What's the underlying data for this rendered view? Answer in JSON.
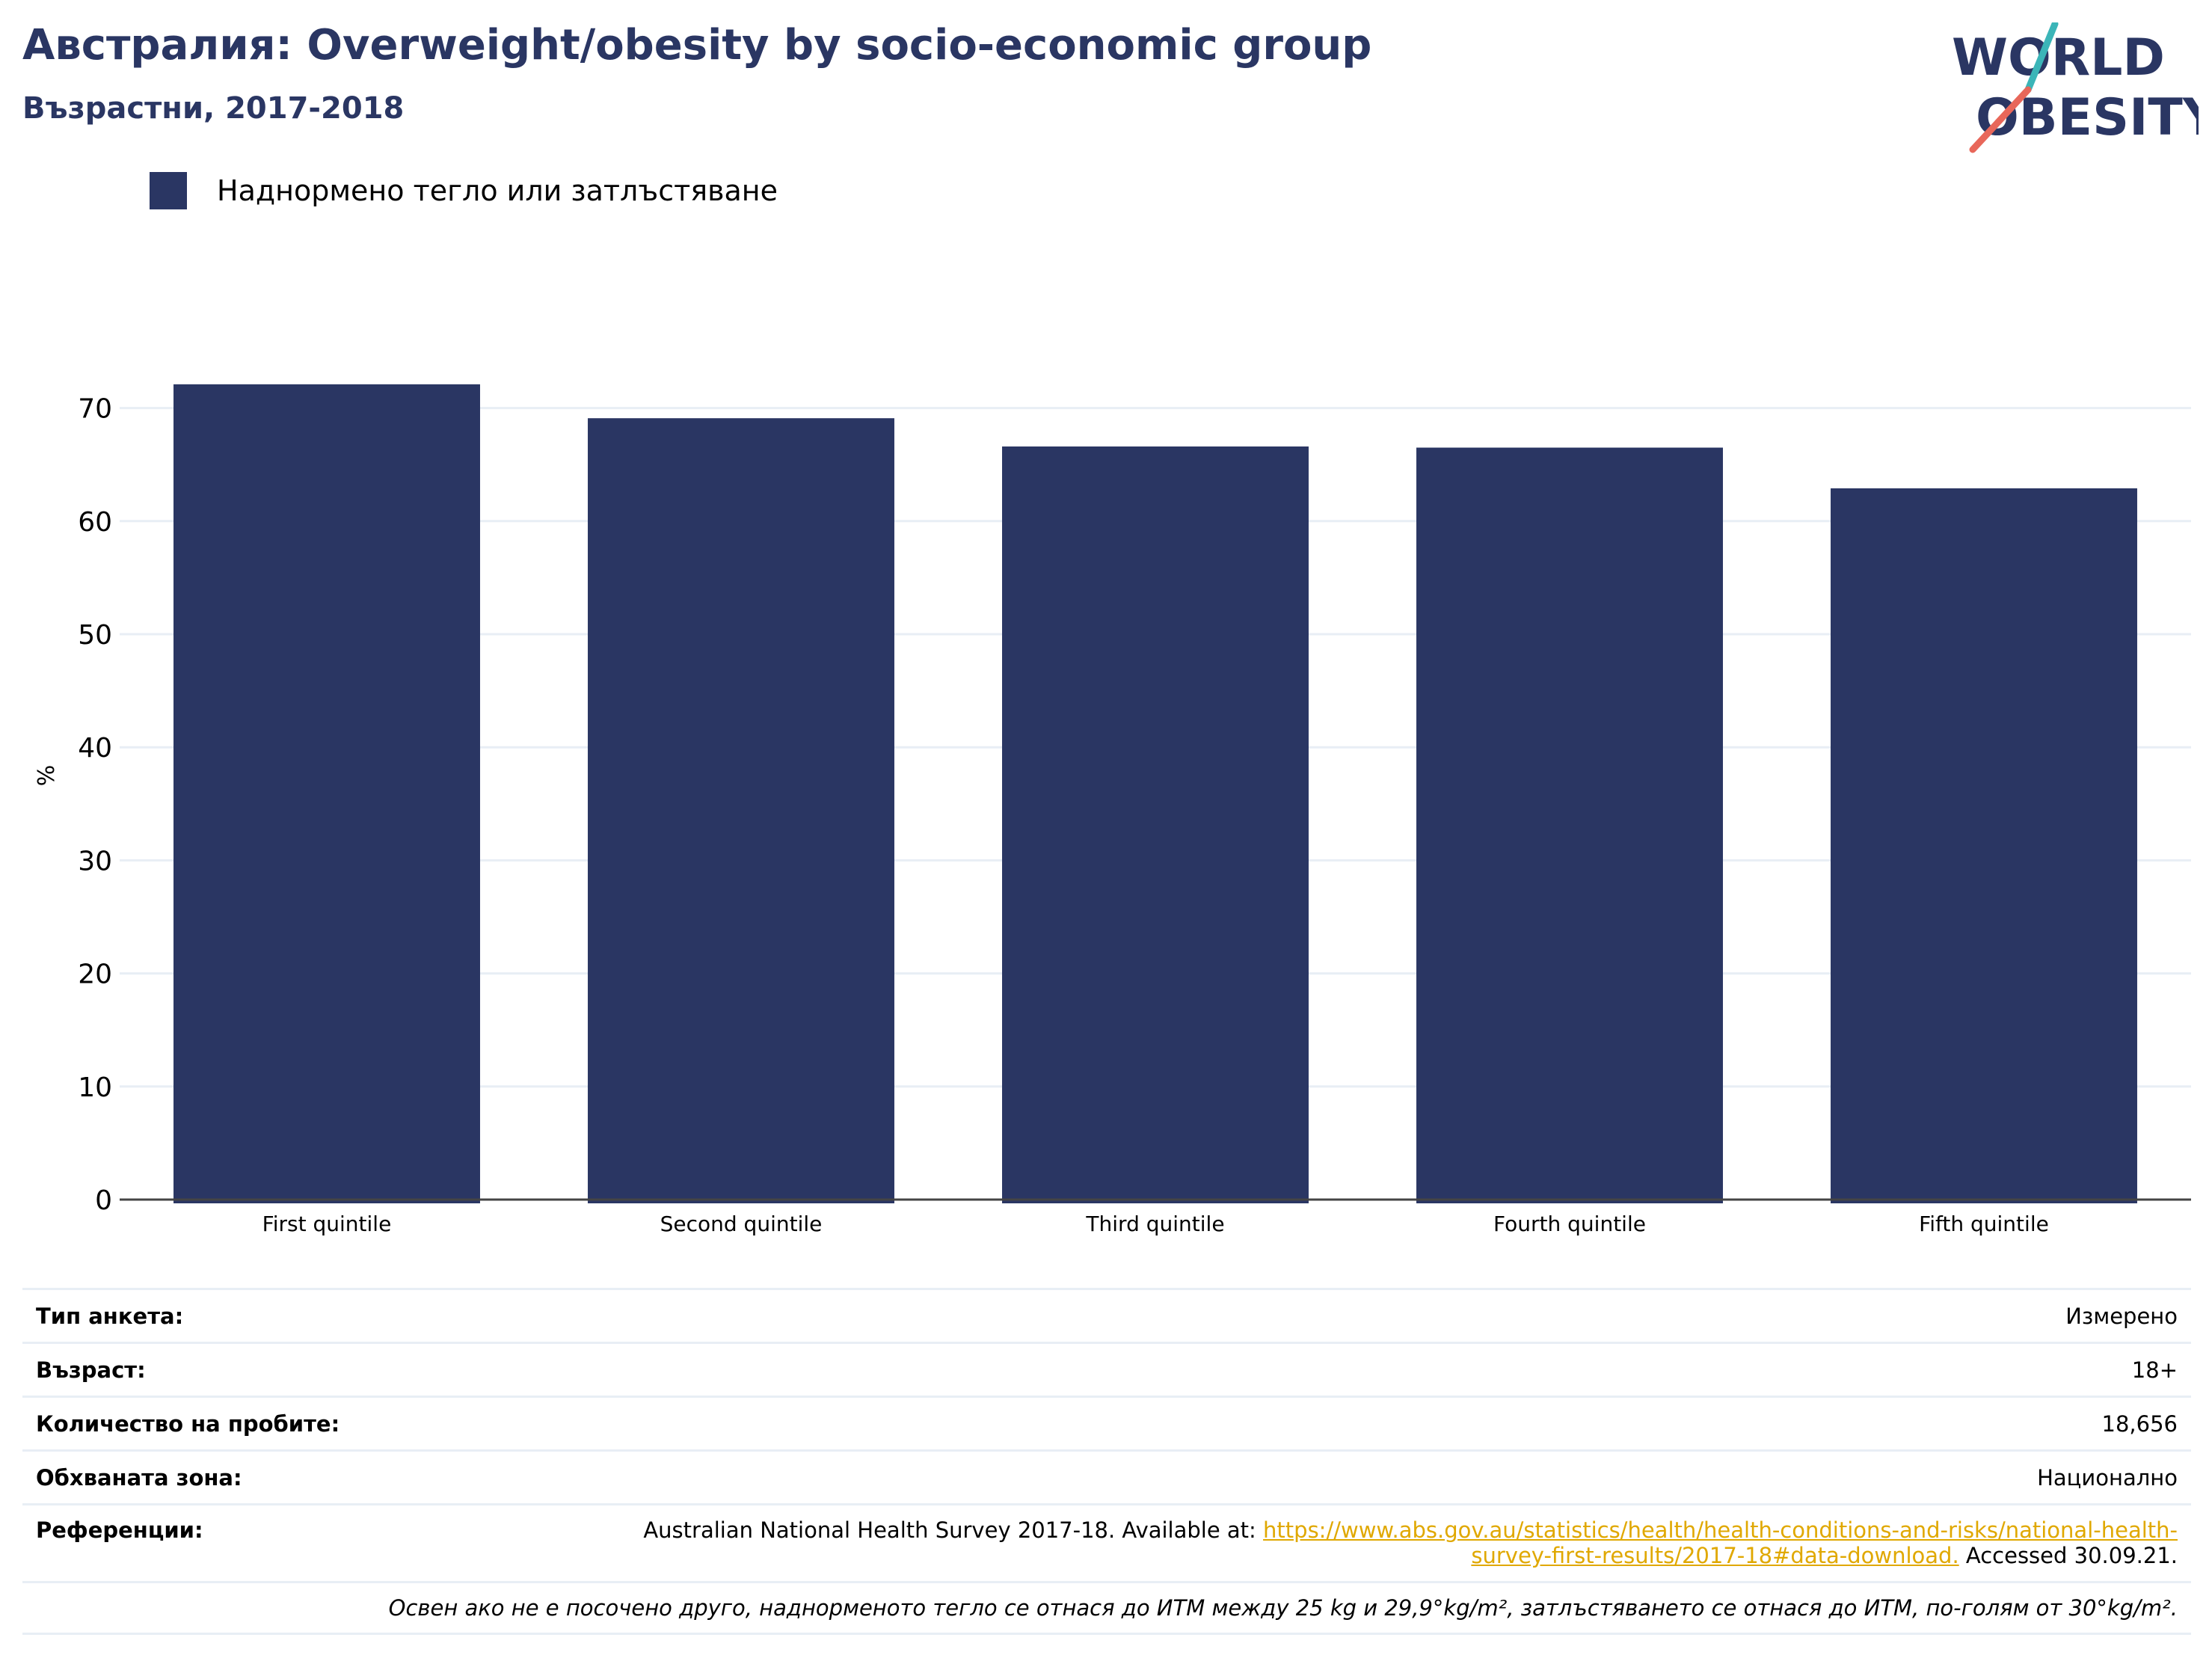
{
  "header": {
    "title": "Австралия: Overweight/obesity by socio-economic group",
    "subtitle": "Възрастни, 2017-2018"
  },
  "logo": {
    "line1": "WORLD",
    "line2": "OBESITY",
    "colors": {
      "text": "#2a3663",
      "slash_top": "#3bb5b8",
      "slash_bottom": "#e8675a"
    }
  },
  "legend": {
    "items": [
      {
        "label": "Наднормено тегло или затлъстяване",
        "color": "#2a3663"
      }
    ]
  },
  "chart_data": {
    "type": "bar",
    "categories": [
      "First quintile",
      "Second quintile",
      "Third quintile",
      "Fourth quintile",
      "Fifth quintile"
    ],
    "series": [
      {
        "name": "Наднормено тегло или затлъстяване",
        "values": [
          72.1,
          69.1,
          66.6,
          66.5,
          62.9
        ],
        "color": "#2a3663"
      }
    ],
    "ylabel": "%",
    "xlabel": "",
    "ylim": [
      0,
      75
    ],
    "yticks": [
      0,
      10,
      20,
      30,
      40,
      50,
      60,
      70
    ],
    "grid": true,
    "legend_position": "top-left"
  },
  "meta": {
    "survey_type": {
      "label": "Тип анкета:",
      "value": "Измерено"
    },
    "age": {
      "label": "Възраст:",
      "value": "18+"
    },
    "sample_size": {
      "label": "Количество на пробите:",
      "value": "18,656"
    },
    "area": {
      "label": "Обхваната зона:",
      "value": "Национално"
    },
    "references": {
      "label": "Референции:",
      "prefix": "Australian National Health Survey 2017-18. Available at: ",
      "link": "https://www.abs.gov.au/statistics/health/health-conditions-and-risks/national-health-survey-first-results/2017-18#data-download.",
      "suffix": " Accessed 30.09.21."
    },
    "note": "Освен ако не е посочено друго, наднорменото тегло се отнася до ИТМ между 25 kg и 29,9°kg/m², затлъстяването се отнася до ИТМ, по-голям от 30°kg/m²."
  }
}
